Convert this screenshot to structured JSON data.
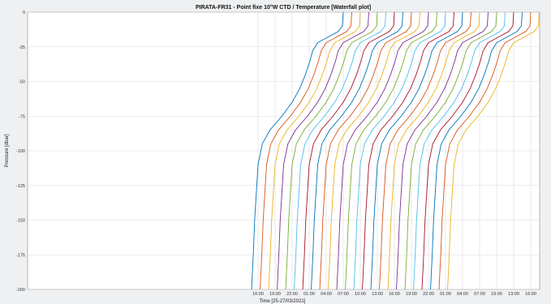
{
  "chart_data": {
    "type": "line",
    "title": "PIRATA-FR31 - Point fixe 10°W CTD / Temperature [Waterfall plot]",
    "xlabel": "Time [25-27/03/2021]",
    "ylabel": "Pressure [dbar]",
    "ylim": [
      -200,
      0
    ],
    "y_ticks": [
      "0",
      "-25",
      "-50",
      "-75",
      "-100",
      "-125",
      "-150",
      "-175",
      "-200"
    ],
    "x_tick_labels": [
      "16:00",
      "19:00",
      "22:00",
      "01:00",
      "04:00",
      "07:00",
      "10:00",
      "13:00",
      "16:00",
      "19:00",
      "22:00",
      "01:00",
      "04:00",
      "07:00",
      "10:00",
      "13:00",
      "16:00"
    ],
    "grid": true,
    "legend": "none",
    "pressure": [
      0,
      -10,
      -14,
      -18,
      -22,
      -28,
      -35,
      -45,
      -55,
      -65,
      -75,
      -85,
      -95,
      -110,
      -130,
      -150,
      -175,
      -200
    ],
    "series": [
      {
        "color": "#0072bd",
        "times": [
          5.0,
          4.95,
          4.7,
          4.1,
          3.5,
          3.2,
          3.05,
          2.78,
          2.45,
          2.0,
          1.4,
          0.7,
          0.25,
          0.0,
          -0.1,
          -0.2,
          -0.28,
          -0.38
        ]
      },
      {
        "color": "#d95319",
        "times": [
          5.5,
          5.45,
          5.2,
          4.6,
          4.0,
          3.7,
          3.55,
          3.28,
          2.95,
          2.5,
          1.9,
          1.2,
          0.75,
          0.5,
          0.4,
          0.3,
          0.22,
          0.12
        ]
      },
      {
        "color": "#edb120",
        "times": [
          6.0,
          5.95,
          5.7,
          5.1,
          4.5,
          4.2,
          4.05,
          3.78,
          3.45,
          3.0,
          2.4,
          1.7,
          1.25,
          1.0,
          0.9,
          0.8,
          0.72,
          0.62
        ]
      },
      {
        "color": "#7e2f8e",
        "times": [
          6.5,
          6.45,
          6.2,
          5.6,
          5.0,
          4.7,
          4.55,
          4.28,
          3.95,
          3.5,
          2.9,
          2.2,
          1.75,
          1.5,
          1.4,
          1.3,
          1.22,
          1.12
        ]
      },
      {
        "color": "#77ac30",
        "times": [
          7.0,
          6.95,
          6.7,
          6.1,
          5.5,
          5.2,
          5.05,
          4.78,
          4.45,
          4.0,
          3.4,
          2.7,
          2.25,
          2.0,
          1.9,
          1.8,
          1.72,
          1.62
        ]
      },
      {
        "color": "#4dbeee",
        "times": [
          7.5,
          7.45,
          7.2,
          6.6,
          6.0,
          5.7,
          5.55,
          5.28,
          4.95,
          4.5,
          3.9,
          3.2,
          2.75,
          2.5,
          2.4,
          2.3,
          2.22,
          2.12
        ]
      },
      {
        "color": "#a2142f",
        "times": [
          8.0,
          7.95,
          7.7,
          7.1,
          6.5,
          6.2,
          6.05,
          5.78,
          5.45,
          5.0,
          4.4,
          3.7,
          3.25,
          3.0,
          2.9,
          2.8,
          2.72,
          2.62
        ]
      },
      {
        "color": "#0072bd",
        "times": [
          8.5,
          8.45,
          8.2,
          7.6,
          7.0,
          6.7,
          6.55,
          6.28,
          5.95,
          5.5,
          4.9,
          4.2,
          3.75,
          3.5,
          3.4,
          3.3,
          3.22,
          3.12
        ]
      },
      {
        "color": "#d95319",
        "times": [
          9.0,
          8.95,
          8.7,
          8.1,
          7.5,
          7.2,
          7.05,
          6.78,
          6.45,
          6.0,
          5.4,
          4.7,
          4.25,
          4.0,
          3.9,
          3.8,
          3.72,
          3.62
        ]
      },
      {
        "color": "#edb120",
        "times": [
          9.5,
          9.45,
          9.2,
          8.6,
          8.0,
          7.7,
          7.55,
          7.28,
          6.95,
          6.5,
          5.9,
          5.2,
          4.75,
          4.5,
          4.4,
          4.3,
          4.22,
          4.12
        ]
      },
      {
        "color": "#7e2f8e",
        "times": [
          10.0,
          9.95,
          9.7,
          9.1,
          8.5,
          8.2,
          8.05,
          7.78,
          7.45,
          7.0,
          6.4,
          5.7,
          5.25,
          5.0,
          4.9,
          4.8,
          4.72,
          4.62
        ]
      },
      {
        "color": "#77ac30",
        "times": [
          10.5,
          10.45,
          10.2,
          9.6,
          9.0,
          8.7,
          8.55,
          8.28,
          7.95,
          7.5,
          6.9,
          6.2,
          5.75,
          5.5,
          5.4,
          5.3,
          5.22,
          5.12
        ]
      },
      {
        "color": "#4dbeee",
        "times": [
          11.0,
          10.95,
          10.7,
          10.1,
          9.5,
          9.2,
          9.05,
          8.78,
          8.45,
          8.0,
          7.4,
          6.7,
          6.25,
          6.0,
          5.9,
          5.8,
          5.72,
          5.62
        ]
      },
      {
        "color": "#a2142f",
        "times": [
          11.5,
          11.45,
          11.2,
          10.6,
          10.0,
          9.7,
          9.55,
          9.28,
          8.95,
          8.5,
          7.9,
          7.2,
          6.75,
          6.5,
          6.4,
          6.3,
          6.22,
          6.12
        ]
      },
      {
        "color": "#0072bd",
        "times": [
          12.0,
          11.95,
          11.7,
          11.1,
          10.5,
          10.2,
          10.05,
          9.78,
          9.45,
          9.0,
          8.4,
          7.7,
          7.25,
          7.0,
          6.9,
          6.8,
          6.72,
          6.62
        ]
      },
      {
        "color": "#d95319",
        "times": [
          12.5,
          12.45,
          12.2,
          11.6,
          11.0,
          10.7,
          10.55,
          10.28,
          9.95,
          9.5,
          8.9,
          8.2,
          7.75,
          7.5,
          7.4,
          7.3,
          7.22,
          7.12
        ]
      },
      {
        "color": "#edb120",
        "times": [
          13.0,
          12.95,
          12.7,
          12.1,
          11.5,
          11.2,
          11.05,
          10.78,
          10.45,
          10.0,
          9.4,
          8.7,
          8.25,
          8.0,
          7.9,
          7.8,
          7.72,
          7.62
        ]
      },
      {
        "color": "#7e2f8e",
        "times": [
          13.5,
          13.45,
          13.2,
          12.6,
          12.0,
          11.7,
          11.55,
          11.28,
          10.95,
          10.5,
          9.9,
          9.2,
          8.75,
          8.5,
          8.4,
          8.3,
          8.22,
          8.12
        ]
      },
      {
        "color": "#77ac30",
        "times": [
          14.0,
          13.95,
          13.7,
          13.1,
          12.5,
          12.2,
          12.05,
          11.78,
          11.45,
          11.0,
          10.4,
          9.7,
          9.25,
          9.0,
          8.9,
          8.8,
          8.72,
          8.62
        ]
      },
      {
        "color": "#4dbeee",
        "times": [
          14.5,
          14.45,
          14.2,
          13.6,
          13.0,
          12.7,
          12.55,
          12.28,
          11.95,
          11.5,
          10.9,
          10.2,
          9.75,
          9.5,
          9.4,
          9.3,
          9.22,
          9.12
        ]
      },
      {
        "color": "#a2142f",
        "times": [
          15.0,
          14.95,
          14.7,
          14.1,
          13.5,
          13.2,
          13.05,
          12.78,
          12.45,
          12.0,
          11.4,
          10.7,
          10.25,
          10.0,
          9.9,
          9.8,
          9.72,
          9.62
        ]
      },
      {
        "color": "#0072bd",
        "times": [
          15.5,
          15.45,
          15.2,
          14.6,
          14.0,
          13.7,
          13.55,
          13.28,
          12.95,
          12.5,
          11.9,
          11.2,
          10.75,
          10.5,
          10.4,
          10.3,
          10.22,
          10.12
        ]
      },
      {
        "color": "#d95319",
        "times": [
          16.0,
          15.95,
          15.7,
          15.1,
          14.5,
          14.2,
          14.05,
          13.78,
          13.45,
          13.0,
          12.4,
          11.7,
          11.25,
          11.0,
          10.9,
          10.8,
          10.72,
          10.62
        ]
      },
      {
        "color": "#edb120",
        "times": [
          16.5,
          16.45,
          16.2,
          15.6,
          15.0,
          14.7,
          14.55,
          14.28,
          13.95,
          13.5,
          12.9,
          12.2,
          11.75,
          11.5,
          11.4,
          11.3,
          11.22,
          11.12
        ]
      }
    ]
  }
}
